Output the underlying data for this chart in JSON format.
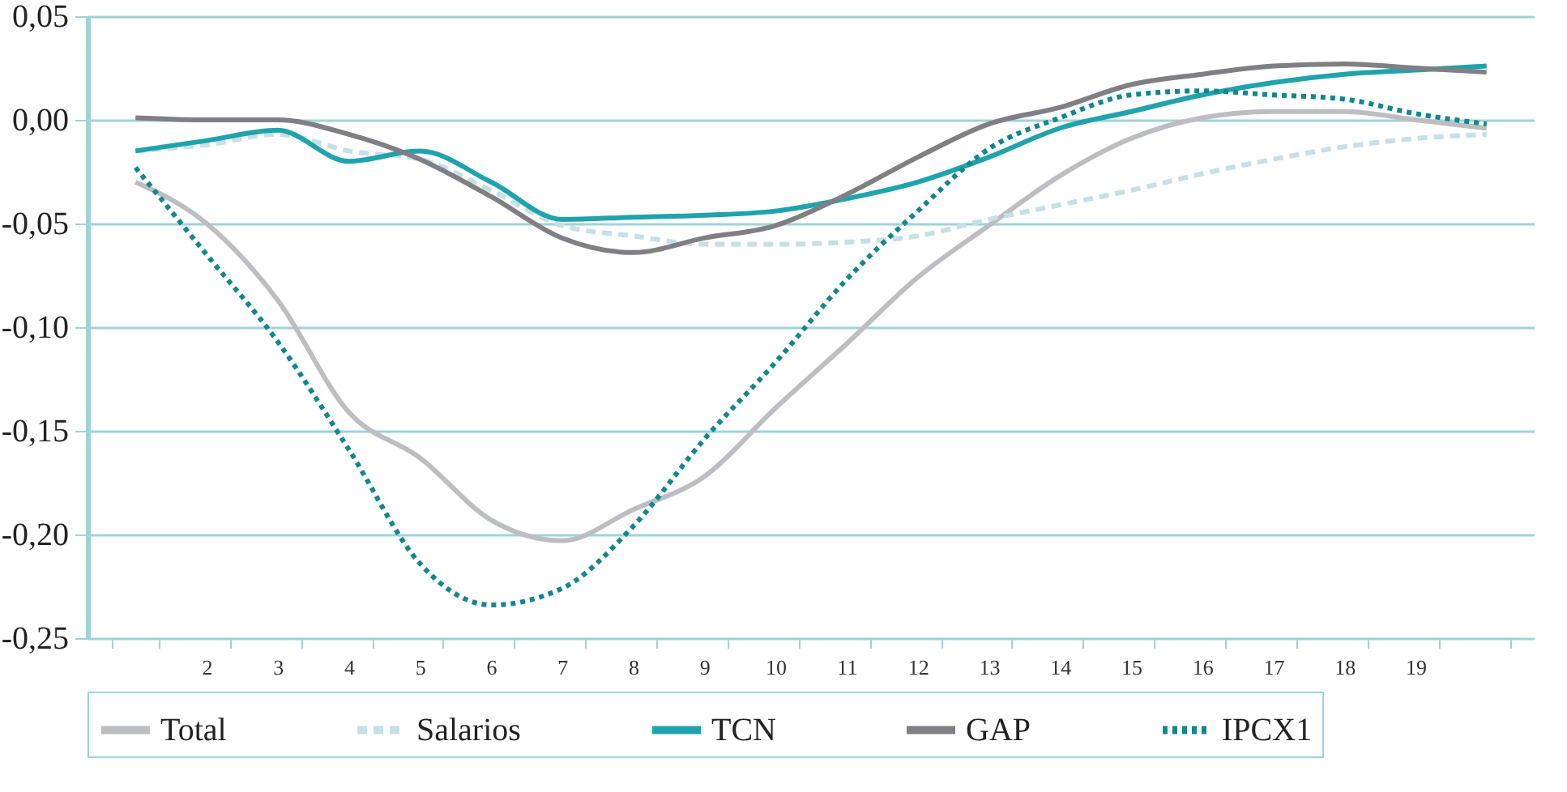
{
  "chart_data": {
    "type": "line",
    "categories": [
      null,
      "2",
      "3",
      "4",
      "5",
      "6",
      "7",
      "8",
      "9",
      "10",
      "11",
      "12",
      "13",
      "14",
      "15",
      "16",
      "17",
      "18",
      "19",
      null
    ],
    "series": [
      {
        "name": "Total",
        "color": "#bdbec2",
        "line_style": "solid",
        "values": [
          -0.03,
          -0.05,
          -0.087,
          -0.141,
          -0.163,
          -0.193,
          -0.203,
          -0.188,
          -0.172,
          -0.139,
          -0.108,
          -0.076,
          -0.051,
          -0.027,
          -0.009,
          0.001,
          0.004,
          0.004,
          0.0,
          -0.004
        ]
      },
      {
        "name": "Salarios",
        "color": "#c5e0e6",
        "line_style": "dashed",
        "values": [
          -0.015,
          -0.012,
          -0.007,
          -0.015,
          -0.019,
          -0.034,
          -0.051,
          -0.056,
          -0.06,
          -0.06,
          -0.059,
          -0.056,
          -0.048,
          -0.041,
          -0.034,
          -0.026,
          -0.019,
          -0.013,
          -0.009,
          -0.007
        ]
      },
      {
        "name": "TCN",
        "color": "#1fa3ad",
        "line_style": "solid",
        "values": [
          -0.015,
          -0.01,
          -0.005,
          -0.02,
          -0.015,
          -0.03,
          -0.048,
          -0.047,
          -0.046,
          -0.044,
          -0.038,
          -0.03,
          -0.018,
          -0.004,
          0.004,
          0.012,
          0.018,
          0.022,
          0.024,
          0.026
        ]
      },
      {
        "name": "GAP",
        "color": "#7f7f84",
        "line_style": "solid",
        "values": [
          0.001,
          0.0,
          0.0,
          -0.007,
          -0.019,
          -0.037,
          -0.057,
          -0.064,
          -0.057,
          -0.051,
          -0.036,
          -0.018,
          -0.002,
          0.006,
          0.017,
          0.022,
          0.026,
          0.027,
          0.025,
          0.023
        ]
      },
      {
        "name": "IPCX1",
        "color": "#13868f",
        "line_style": "dotted",
        "values": [
          -0.023,
          -0.065,
          -0.107,
          -0.159,
          -0.214,
          -0.234,
          -0.226,
          -0.196,
          -0.154,
          -0.117,
          -0.077,
          -0.044,
          -0.014,
          0.001,
          0.012,
          0.014,
          0.012,
          0.01,
          0.003,
          -0.002
        ]
      }
    ],
    "ylim": [
      -0.25,
      0.05
    ],
    "yticks": [
      {
        "value": -0.25,
        "label": "-0,25"
      },
      {
        "value": -0.2,
        "label": "-0,20"
      },
      {
        "value": -0.15,
        "label": "-0,15"
      },
      {
        "value": -0.1,
        "label": "-0,10"
      },
      {
        "value": -0.05,
        "label": "-0,05"
      },
      {
        "value": 0,
        "label": "0,00"
      },
      {
        "value": 0.05,
        "label": "0,05"
      }
    ],
    "grid": "y",
    "legend": "bottom",
    "marker": "none"
  }
}
